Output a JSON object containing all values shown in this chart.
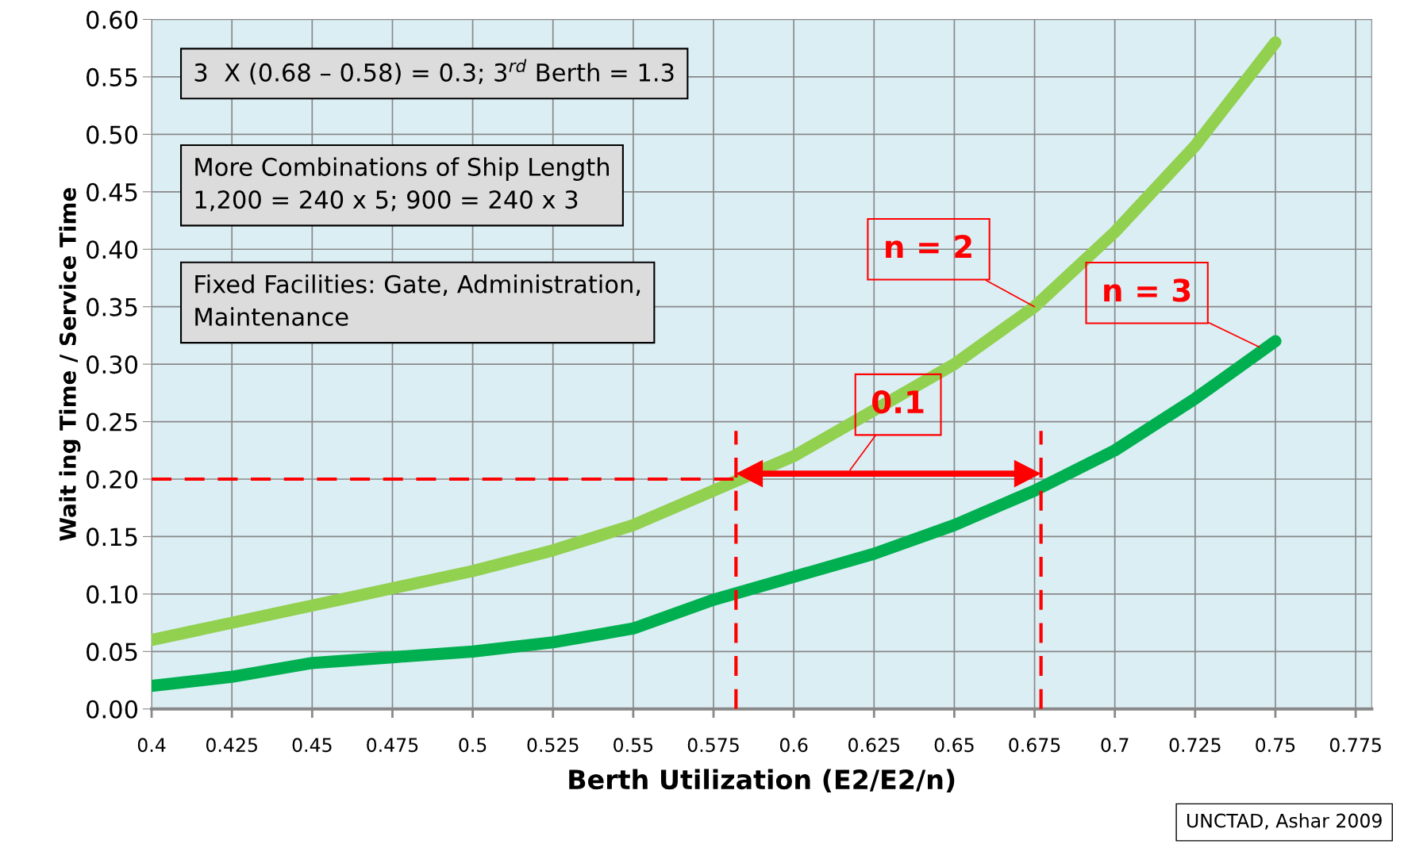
{
  "chart_data": {
    "type": "line",
    "xlabel": "Berth Utilization (E2/E2/n)",
    "ylabel": "Wait ing Time / Service Time",
    "x": [
      0.4,
      0.425,
      0.45,
      0.475,
      0.5,
      0.525,
      0.55,
      0.575,
      0.6,
      0.625,
      0.65,
      0.675,
      0.7,
      0.725,
      0.75
    ],
    "series": [
      {
        "color": "#92d050",
        "values": [
          0.06,
          0.075,
          0.09,
          0.105,
          0.12,
          0.138,
          0.16,
          0.19,
          0.22,
          0.26,
          0.3,
          0.35,
          0.415,
          0.49,
          0.58
        ]
      },
      {
        "color": "#00b050",
        "values": [
          0.02,
          0.028,
          0.04,
          0.045,
          0.05,
          0.058,
          0.07,
          0.095,
          0.115,
          0.135,
          0.16,
          0.19,
          0.225,
          0.27,
          0.32
        ]
      }
    ],
    "xlim": [
      0.4,
      0.78
    ],
    "xticks": [
      0.4,
      0.425,
      0.45,
      0.475,
      0.5,
      0.525,
      0.55,
      0.575,
      0.6,
      0.625,
      0.65,
      0.675,
      0.7,
      0.725,
      0.75,
      0.775
    ],
    "ylim": [
      0,
      0.6
    ],
    "yticks": [
      {
        "value": 0,
        "label": "0.00"
      },
      {
        "value": 0.05,
        "label": "0.05"
      },
      {
        "value": 0.1,
        "label": "0.10"
      },
      {
        "value": 0.15,
        "label": "0.15"
      },
      {
        "value": 0.2,
        "label": "0.20"
      },
      {
        "value": 0.25,
        "label": "0.25"
      },
      {
        "value": 0.3,
        "label": "0.30"
      },
      {
        "value": 0.35,
        "label": "0.35"
      },
      {
        "value": 0.4,
        "label": "0.40"
      },
      {
        "value": 0.45,
        "label": "0.45"
      },
      {
        "value": 0.5,
        "label": "0.50"
      },
      {
        "value": 0.55,
        "label": "0.55"
      },
      {
        "value": 0.6,
        "label": "0.60"
      }
    ],
    "grid": true,
    "legend": false,
    "marker": "none",
    "line_style": "solid",
    "ref_lines": [
      {
        "axis": "y",
        "value": 0.2,
        "color": "#ff0000",
        "line_style": "dashed"
      },
      {
        "axis": "x",
        "value": 0.582,
        "color": "#ff0000",
        "line_style": "dashed"
      },
      {
        "axis": "x",
        "value": 0.677,
        "color": "#ff0000",
        "line_style": "dashed"
      }
    ],
    "annotations": [
      "3  X (0.68 – 0.58) = 0.3; 3$^{rd}$ Berth = 1.3",
      "More Combinations of Ship Length\n1,200 = 240 x 5; 900 = 240 x 3",
      "Fixed Facilities: Gate, Administration,\nMaintenance",
      {
        "text": "n = 2",
        "x": 0.675,
        "y": 0.35
      },
      {
        "text": "n = 3",
        "x": 0.745,
        "y": 0.315
      },
      "0.1",
      "UNCTAD, Ashar 2009"
    ]
  }
}
